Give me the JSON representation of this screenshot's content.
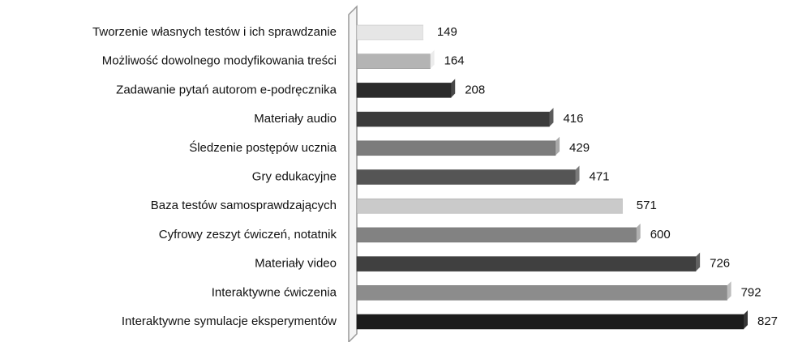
{
  "chart_data": {
    "type": "bar",
    "orientation": "horizontal",
    "categories": [
      "Tworzenie własnych testów i ich sprawdzanie",
      "Możliwość dowolnego modyfikowania treści",
      "Zadawanie pytań autorom e-podręcznika",
      "Materiały audio",
      "Śledzenie postępów ucznia",
      "Gry edukacyjne",
      "Baza testów samosprawdzających",
      "Cyfrowy zeszyt ćwiczeń, notatnik",
      "Materiały video",
      "Interaktywne ćwiczenia",
      "Interaktywne symulacje eksperymentów"
    ],
    "values": [
      149,
      164,
      208,
      416,
      429,
      471,
      571,
      600,
      726,
      792,
      827
    ],
    "colors": [
      "#e6e6e6",
      "#b4b4b4",
      "#2b2b2b",
      "#3b3b3b",
      "#7c7c7c",
      "#555555",
      "#cacaca",
      "#828282",
      "#404040",
      "#8c8c8c",
      "#1c1c1c"
    ]
  }
}
